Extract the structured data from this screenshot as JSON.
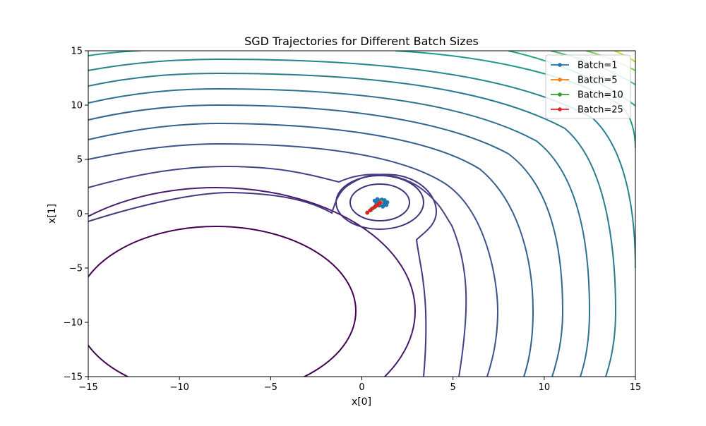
{
  "chart_data": {
    "type": "line",
    "title": "SGD Trajectories for Different Batch Sizes",
    "xlabel": "x[0]",
    "ylabel": "x[1]",
    "xlim": [
      -15,
      15
    ],
    "ylim": [
      -15,
      15
    ],
    "xticks": [
      -15,
      -10,
      -5,
      0,
      5,
      10,
      15
    ],
    "yticks": [
      -15,
      -10,
      -5,
      0,
      5,
      10,
      15
    ],
    "xtick_labels": [
      "−15",
      "−10",
      "−5",
      "0",
      "5",
      "10",
      "15"
    ],
    "ytick_labels": [
      "−15",
      "−10",
      "−5",
      "0",
      "5",
      "10",
      "15"
    ],
    "grid": false,
    "legend_position": "top-right",
    "background_contours": "filled-free contour lines of a loss surface (viridis colormap), global minimum near (1, 1), broad basin near (-8, -9)",
    "series": [
      {
        "name": "Batch=1",
        "color": "#1f77b4",
        "x": [
          0.3,
          0.55,
          0.75,
          0.9,
          1.05,
          1.25,
          1.4,
          1.35,
          1.15,
          0.95,
          0.8,
          0.7,
          0.85,
          1.1,
          1.3,
          1.2,
          0.95,
          0.85,
          1.05,
          1.25,
          1.0
        ],
        "y": [
          0.1,
          0.45,
          0.7,
          0.9,
          1.1,
          1.25,
          1.05,
          0.8,
          0.65,
          0.75,
          0.95,
          1.2,
          1.35,
          1.3,
          1.0,
          0.75,
          0.85,
          1.15,
          1.25,
          0.95,
          1.0
        ]
      },
      {
        "name": "Batch=5",
        "color": "#ff7f0e",
        "x": [
          0.3,
          0.5,
          0.7,
          0.85,
          0.95,
          1.05,
          1.0
        ],
        "y": [
          0.1,
          0.35,
          0.6,
          0.8,
          0.95,
          1.05,
          1.0
        ]
      },
      {
        "name": "Batch=10",
        "color": "#2ca02c",
        "x": [
          0.3,
          0.5,
          0.7,
          0.85,
          0.95,
          1.0
        ],
        "y": [
          0.1,
          0.35,
          0.6,
          0.8,
          0.92,
          1.0
        ]
      },
      {
        "name": "Batch=25",
        "color": "#d62728",
        "x": [
          0.3,
          0.45,
          0.6,
          0.75,
          0.85,
          0.93,
          0.98,
          1.0
        ],
        "y": [
          0.1,
          0.3,
          0.5,
          0.68,
          0.8,
          0.9,
          0.96,
          1.0
        ]
      }
    ]
  }
}
